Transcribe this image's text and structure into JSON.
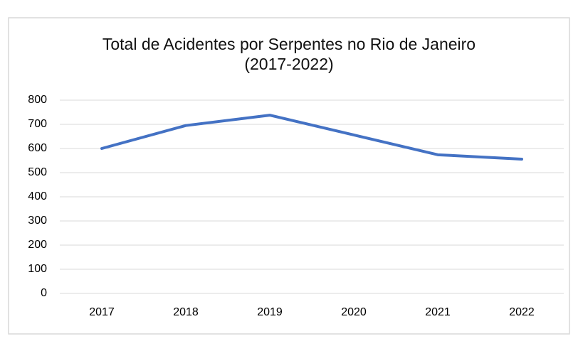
{
  "chart_data": {
    "type": "line",
    "title": "Total de Acidentes por Serpentes no Rio de Janeiro (2017-2022)",
    "categories": [
      "2017",
      "2018",
      "2019",
      "2020",
      "2021",
      "2022"
    ],
    "series": [
      {
        "name": "Total de Acidentes",
        "color": "#4472c4",
        "values": [
          600,
          695,
          738,
          656,
          574,
          556
        ]
      }
    ],
    "ylim": [
      0,
      800
    ],
    "yticks": [
      0,
      100,
      200,
      300,
      400,
      500,
      600,
      700,
      800
    ],
    "grid": true
  }
}
